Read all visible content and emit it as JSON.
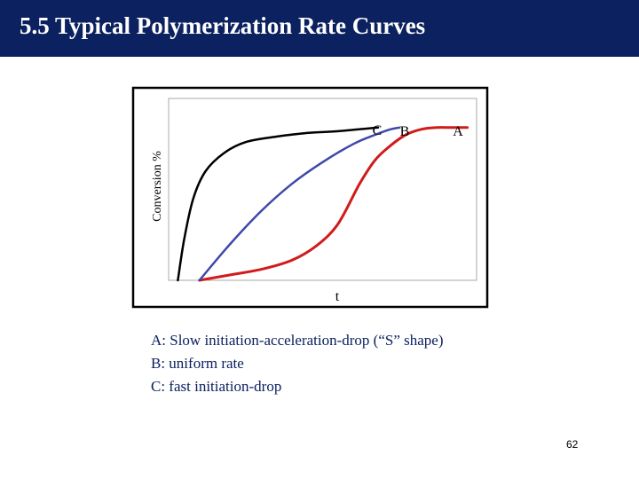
{
  "header": {
    "title": "5.5 Typical Polymerization Rate Curves"
  },
  "theme": {
    "header_bg": "#0b2160",
    "caption_color": "#0b2160"
  },
  "chart_data": {
    "type": "line",
    "xlabel": "t",
    "ylabel": "Conversion %",
    "grid": false,
    "xlim": [
      0,
      100
    ],
    "ylim": [
      0,
      100
    ],
    "series": [
      {
        "name": "A",
        "color": "#d11b1b",
        "x": [
          10,
          20,
          30,
          40,
          48,
          55,
          62,
          67,
          72,
          77,
          82,
          87,
          92,
          97
        ],
        "y": [
          0,
          3,
          6,
          11,
          19,
          31,
          53,
          66,
          74,
          80,
          83,
          84,
          84,
          84
        ]
      },
      {
        "name": "B",
        "color": "#3d49a8",
        "x": [
          10,
          20,
          30,
          40,
          50,
          60,
          67,
          72,
          75
        ],
        "y": [
          0,
          20,
          38,
          53,
          65,
          75,
          80,
          83,
          84
        ]
      },
      {
        "name": "C",
        "color": "#000000",
        "x": [
          3,
          5,
          8,
          12,
          18,
          25,
          35,
          45,
          55,
          68
        ],
        "y": [
          0,
          22,
          45,
          60,
          70,
          76,
          79,
          81,
          82,
          84
        ]
      }
    ]
  },
  "caption": {
    "lines": [
      "A: Slow initiation-acceleration-drop (“S” shape)",
      "B: uniform rate",
      "C: fast initiation-drop"
    ]
  },
  "footer": {
    "page_number": "62"
  }
}
